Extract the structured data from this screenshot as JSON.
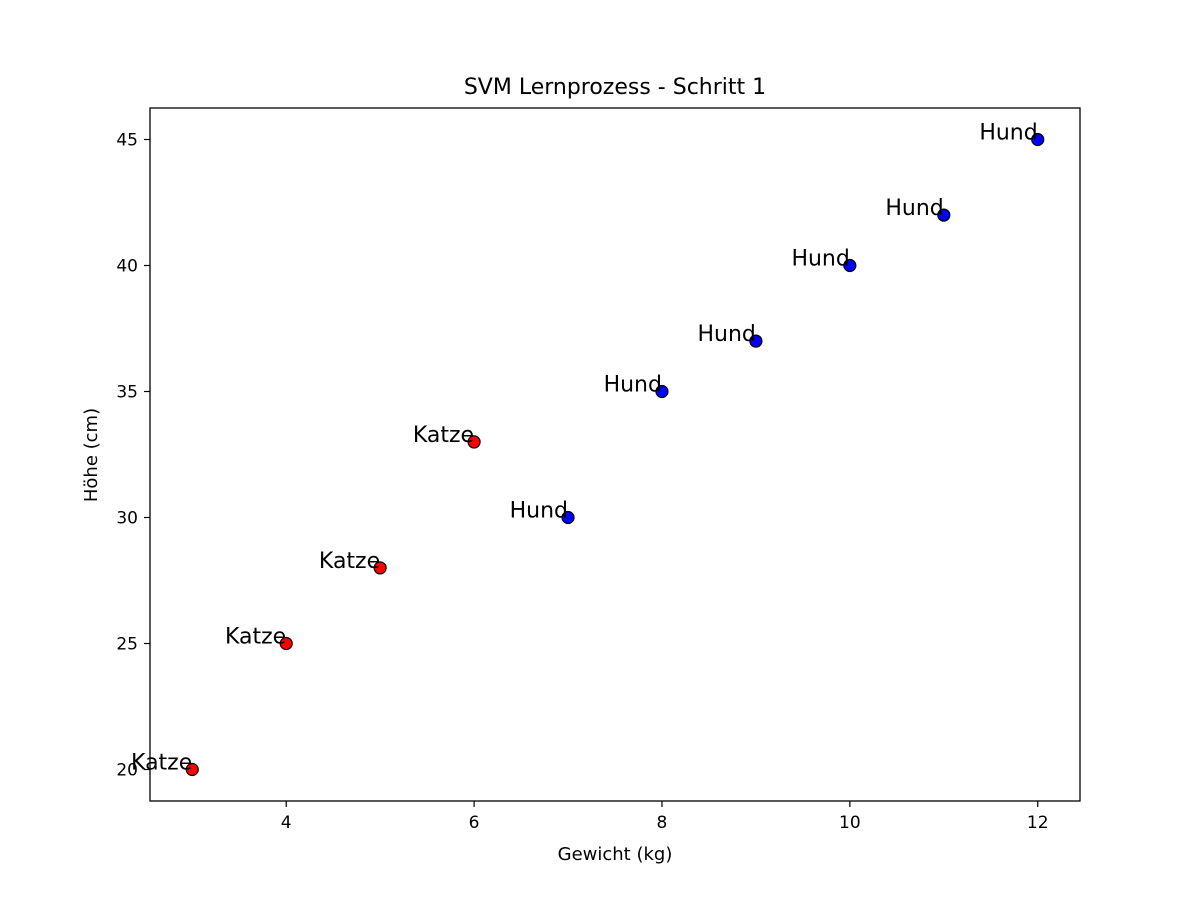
{
  "chart_data": {
    "type": "scatter",
    "title": "SVM Lernprozess - Schritt 1",
    "xlabel": "Gewicht (kg)",
    "ylabel": "Höhe (cm)",
    "xlim": [
      2.55,
      12.45
    ],
    "ylim": [
      18.75,
      46.25
    ],
    "xticks": [
      4,
      6,
      8,
      10,
      12
    ],
    "yticks": [
      20,
      25,
      30,
      35,
      40,
      45
    ],
    "grid": false,
    "colors": {
      "Katze": "#ff0000",
      "Hund": "#0000ff",
      "edge": "#000000"
    },
    "points": [
      {
        "x": 3,
        "y": 20,
        "label": "Katze"
      },
      {
        "x": 4,
        "y": 25,
        "label": "Katze"
      },
      {
        "x": 5,
        "y": 28,
        "label": "Katze"
      },
      {
        "x": 6,
        "y": 33,
        "label": "Katze"
      },
      {
        "x": 7,
        "y": 30,
        "label": "Hund"
      },
      {
        "x": 8,
        "y": 35,
        "label": "Hund"
      },
      {
        "x": 9,
        "y": 37,
        "label": "Hund"
      },
      {
        "x": 10,
        "y": 40,
        "label": "Hund"
      },
      {
        "x": 11,
        "y": 42,
        "label": "Hund"
      },
      {
        "x": 12,
        "y": 45,
        "label": "Hund"
      }
    ]
  }
}
